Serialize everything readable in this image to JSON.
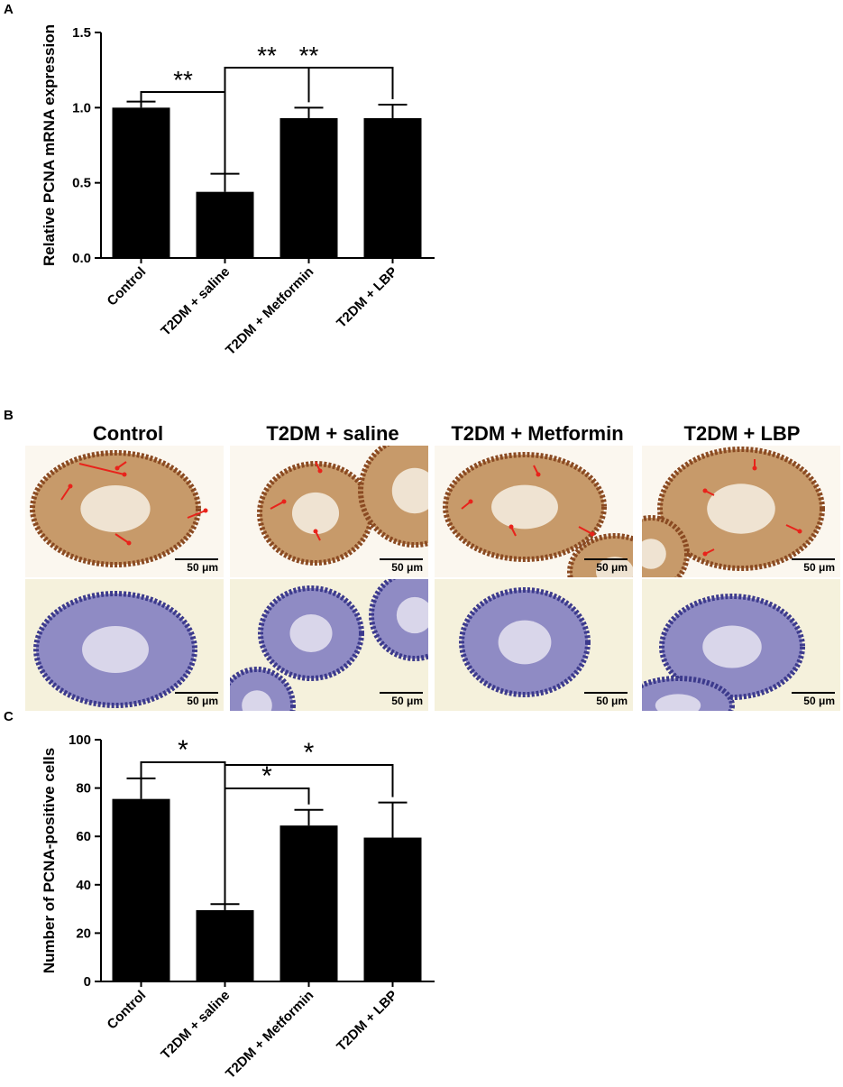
{
  "panels": {
    "a": "A",
    "b": "B",
    "c": "C"
  },
  "chart_data": [
    {
      "type": "bar",
      "categories": [
        "Control",
        "T2DM + saline",
        "T2DM + Metformin",
        "T2DM + LBP"
      ],
      "values": [
        1.0,
        0.44,
        0.93,
        0.93
      ],
      "errors": [
        0.04,
        0.12,
        0.07,
        0.09
      ],
      "ylabel": "Relative PCNA mRNA expression",
      "ylim": [
        0,
        1.5
      ],
      "yticks": [
        "0.0",
        "0.5",
        "1.0",
        "1.5"
      ],
      "significance": [
        {
          "from": 0,
          "to": 1,
          "label": "**"
        },
        {
          "from": 1,
          "to": 2,
          "label": "**"
        },
        {
          "from": 1,
          "to": 3,
          "label": "**"
        }
      ]
    },
    {
      "type": "bar",
      "categories": [
        "Control",
        "T2DM + saline",
        "T2DM + Metformin",
        "T2DM + LBP"
      ],
      "values": [
        75.5,
        29.5,
        64.5,
        59.5
      ],
      "errors": [
        8.5,
        2.5,
        6.5,
        14.5
      ],
      "ylabel": "Number of PCNA-positive cells",
      "ylim": [
        0,
        100
      ],
      "yticks": [
        "0",
        "20",
        "40",
        "60",
        "80",
        "100"
      ],
      "significance": [
        {
          "from": 0,
          "to": 1,
          "label": "*"
        },
        {
          "from": 1,
          "to": 2,
          "label": "*"
        },
        {
          "from": 1,
          "to": 3,
          "label": "*"
        }
      ]
    }
  ],
  "micrographs": {
    "titles": [
      "Control",
      "T2DM + saline",
      "T2DM + Metformin",
      "T2DM + LBP"
    ],
    "scale_label": "50 μm",
    "arrow_color": "#e8231b"
  },
  "colors": {
    "bar": "#000000",
    "stain_brown": "#8a4a22",
    "stain_blue": "#3c3a8c"
  }
}
